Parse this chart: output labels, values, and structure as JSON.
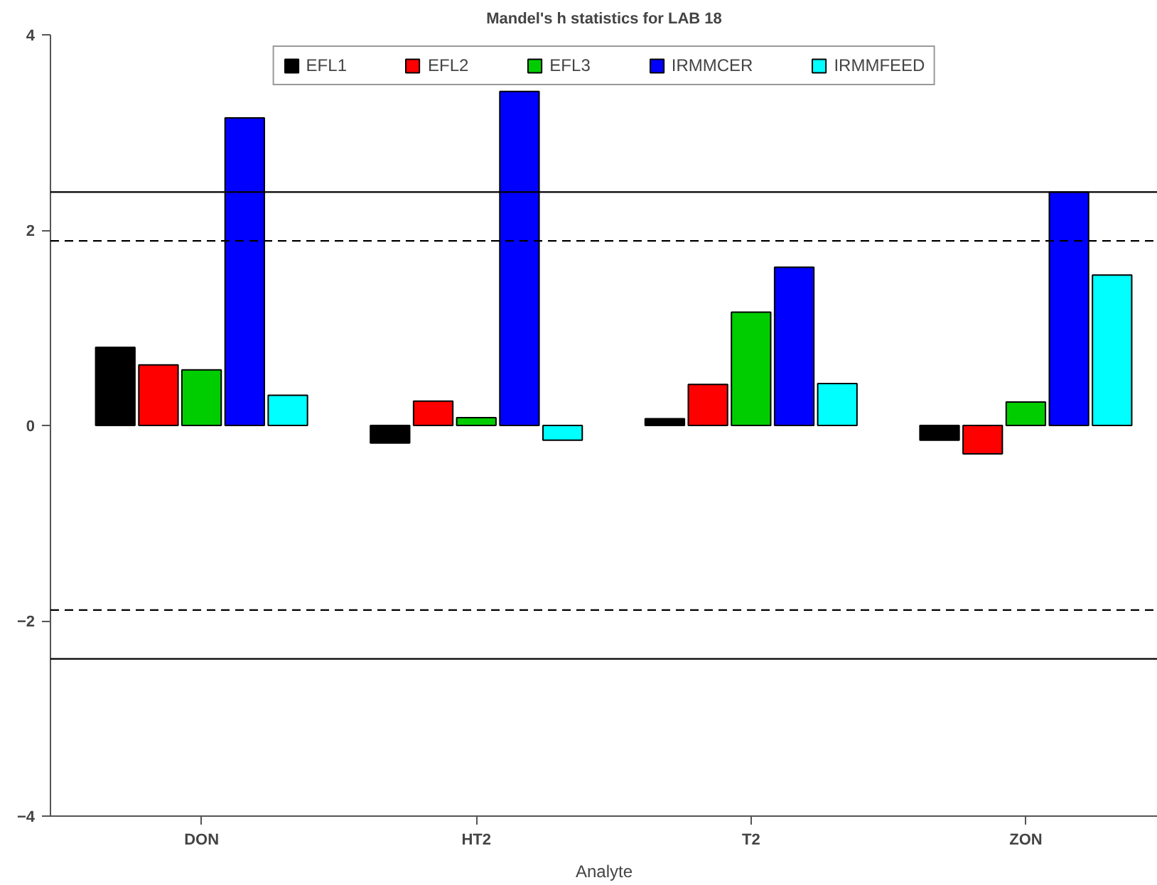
{
  "chart_data": {
    "type": "bar",
    "title": "Mandel's h statistics for LAB 18",
    "xlabel": "Analyte",
    "categories": [
      "DON",
      "HT2",
      "T2",
      "ZON"
    ],
    "series": [
      {
        "name": "EFL1",
        "color": "#000000",
        "values": [
          0.8,
          -0.18,
          0.07,
          -0.15
        ]
      },
      {
        "name": "EFL2",
        "color": "#ff0000",
        "values": [
          0.62,
          0.25,
          0.42,
          -0.29
        ]
      },
      {
        "name": "EFL3",
        "color": "#00cd00",
        "values": [
          0.57,
          0.08,
          1.16,
          0.24
        ]
      },
      {
        "name": "IRMMCER",
        "color": "#0000ff",
        "values": [
          3.15,
          3.42,
          1.62,
          2.39
        ]
      },
      {
        "name": "IRMMFEED",
        "color": "#00ffff",
        "values": [
          0.31,
          -0.15,
          0.43,
          1.54
        ]
      }
    ],
    "ylim": [
      -4,
      4
    ],
    "yticks": [
      -4,
      -2,
      0,
      2,
      4
    ],
    "ref_lines": [
      {
        "axis": "y",
        "value": 2.39,
        "color": "#000000",
        "line_style": "solid"
      },
      {
        "axis": "y",
        "value": 1.89,
        "color": "#000000",
        "line_style": "dashed"
      },
      {
        "axis": "y",
        "value": -1.89,
        "color": "#000000",
        "line_style": "dashed"
      },
      {
        "axis": "y",
        "value": -2.39,
        "color": "#000000",
        "line_style": "solid"
      }
    ],
    "legend": "top",
    "grid": false
  }
}
